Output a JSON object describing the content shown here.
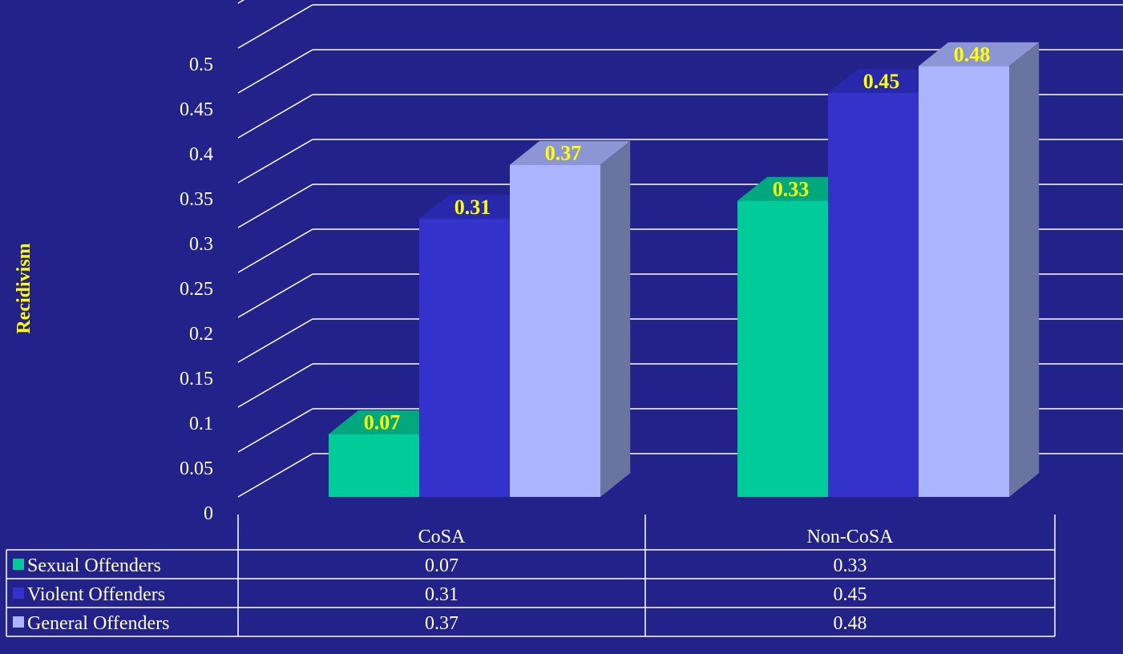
{
  "chart_data": {
    "type": "bar",
    "title": "",
    "xlabel": "",
    "ylabel": "Recidivism",
    "ylim": [
      0,
      0.5
    ],
    "yticks": [
      "0",
      "0.05",
      "0.1",
      "0.15",
      "0.2",
      "0.25",
      "0.3",
      "0.35",
      "0.4",
      "0.45",
      "0.5"
    ],
    "categories": [
      "CoSA",
      "Non-CoSA"
    ],
    "series": [
      {
        "name": "Sexual Offenders",
        "values": [
          0.07,
          0.33
        ],
        "color": "#00cc99",
        "top": "#00a87e",
        "side": "#009a73"
      },
      {
        "name": "Violent Offenders",
        "values": [
          0.31,
          0.45
        ],
        "color": "#3333cc",
        "top": "#2828ac",
        "side": "#2626a6"
      },
      {
        "name": "General Offenders",
        "values": [
          0.37,
          0.48
        ],
        "color": "#aab4ff",
        "top": "#8c96d4",
        "side": "#6a74a0"
      }
    ],
    "data_labels": [
      [
        "0.07",
        "0.33"
      ],
      [
        "0.31",
        "0.45"
      ],
      [
        "0.37",
        "0.48"
      ]
    ],
    "table": {
      "header": [
        "CoSA",
        "Non-CoSA"
      ],
      "rows": [
        [
          "0.07",
          "0.33"
        ],
        [
          "0.31",
          "0.45"
        ],
        [
          "0.37",
          "0.48"
        ]
      ]
    },
    "grid": true,
    "legend": "data-table",
    "colors": {
      "background": "#22228a",
      "grid": "#ffffff",
      "text": "#ffffff",
      "label": "#ffff00"
    }
  }
}
